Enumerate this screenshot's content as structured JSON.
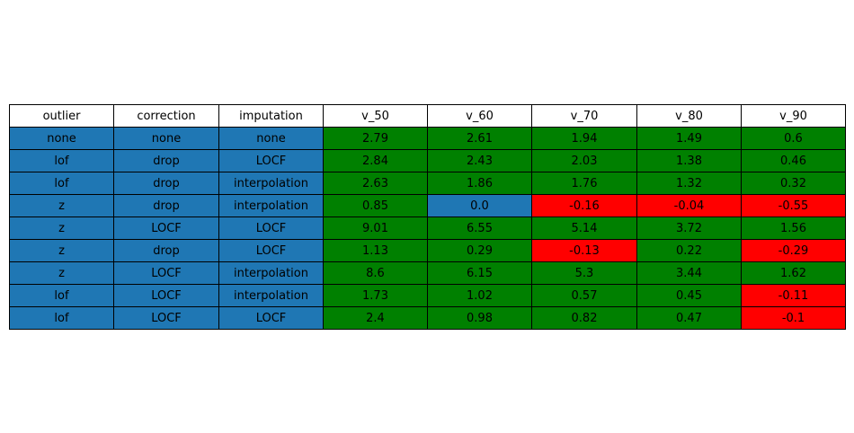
{
  "chart_data": {
    "type": "table",
    "title": "",
    "columns": [
      "outlier",
      "correction",
      "imputation",
      "v_50",
      "v_60",
      "v_70",
      "v_80",
      "v_90"
    ],
    "rows": [
      [
        "none",
        "none",
        "none",
        "2.79",
        "2.61",
        "1.94",
        "1.49",
        "0.6"
      ],
      [
        "lof",
        "drop",
        "LOCF",
        "2.84",
        "2.43",
        "2.03",
        "1.38",
        "0.46"
      ],
      [
        "lof",
        "drop",
        "interpolation",
        "2.63",
        "1.86",
        "1.76",
        "1.32",
        "0.32"
      ],
      [
        "z",
        "drop",
        "interpolation",
        "0.85",
        "0.0",
        "-0.16",
        "-0.04",
        "-0.55"
      ],
      [
        "z",
        "LOCF",
        "LOCF",
        "9.01",
        "6.55",
        "5.14",
        "3.72",
        "1.56"
      ],
      [
        "z",
        "drop",
        "LOCF",
        "1.13",
        "0.29",
        "-0.13",
        "0.22",
        "-0.29"
      ],
      [
        "z",
        "LOCF",
        "interpolation",
        "8.6",
        "6.15",
        "5.3",
        "3.44",
        "1.62"
      ],
      [
        "lof",
        "LOCF",
        "interpolation",
        "1.73",
        "1.02",
        "0.57",
        "0.45",
        "-0.11"
      ],
      [
        "lof",
        "LOCF",
        "LOCF",
        "2.4",
        "0.98",
        "0.82",
        "0.47",
        "-0.1"
      ]
    ],
    "header_color": "#ffffff",
    "cell_colors": {
      "label": "#1f77b4",
      "positive": "#008000",
      "zero": "#1f77b4",
      "negative": "#ff0000"
    }
  }
}
